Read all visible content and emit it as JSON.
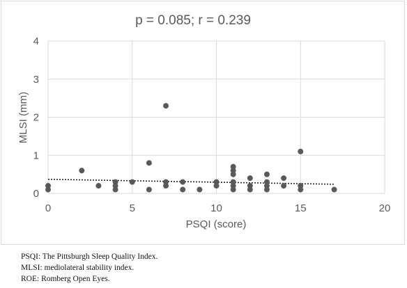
{
  "chart_data": {
    "type": "scatter",
    "title": "p = 0.085; r = 0.239",
    "xlabel": "PSQI (score)",
    "ylabel": "MLSI (mm)",
    "xlim": [
      0,
      20
    ],
    "ylim": [
      0,
      4
    ],
    "xticks": [
      "0",
      "5",
      "10",
      "15",
      "20"
    ],
    "yticks": [
      "0",
      "1",
      "2",
      "3",
      "4"
    ],
    "grid": true,
    "point_color": "#595959",
    "trendline": {
      "style": "dotted",
      "color": "#222222",
      "x": [
        0,
        17
      ],
      "y": [
        0.37,
        0.24
      ]
    },
    "points": [
      {
        "x": 0,
        "y": 0.2
      },
      {
        "x": 0,
        "y": 0.1
      },
      {
        "x": 2,
        "y": 0.6
      },
      {
        "x": 3,
        "y": 0.2
      },
      {
        "x": 4,
        "y": 0.3
      },
      {
        "x": 4,
        "y": 0.2
      },
      {
        "x": 4,
        "y": 0.1
      },
      {
        "x": 5,
        "y": 0.3
      },
      {
        "x": 6,
        "y": 0.8
      },
      {
        "x": 6,
        "y": 0.1
      },
      {
        "x": 7,
        "y": 2.3
      },
      {
        "x": 7,
        "y": 0.3
      },
      {
        "x": 7,
        "y": 0.2
      },
      {
        "x": 8,
        "y": 0.3
      },
      {
        "x": 8,
        "y": 0.1
      },
      {
        "x": 9,
        "y": 0.1
      },
      {
        "x": 10,
        "y": 0.3
      },
      {
        "x": 10,
        "y": 0.2
      },
      {
        "x": 11,
        "y": 0.7
      },
      {
        "x": 11,
        "y": 0.6
      },
      {
        "x": 11,
        "y": 0.5
      },
      {
        "x": 11,
        "y": 0.3
      },
      {
        "x": 11,
        "y": 0.2
      },
      {
        "x": 11,
        "y": 0.1
      },
      {
        "x": 12,
        "y": 0.4
      },
      {
        "x": 12,
        "y": 0.2
      },
      {
        "x": 12,
        "y": 0.1
      },
      {
        "x": 13,
        "y": 0.5
      },
      {
        "x": 13,
        "y": 0.3
      },
      {
        "x": 13,
        "y": 0.2
      },
      {
        "x": 13,
        "y": 0.1
      },
      {
        "x": 14,
        "y": 0.4
      },
      {
        "x": 14,
        "y": 0.2
      },
      {
        "x": 15,
        "y": 1.1
      },
      {
        "x": 15,
        "y": 0.2
      },
      {
        "x": 15,
        "y": 0.1
      },
      {
        "x": 17,
        "y": 0.1
      }
    ]
  },
  "footnotes": {
    "psqi": "PSQI: The Pittsburgh Sleep Quality Index.",
    "mlsi": "MLSI: mediolateral stability index.",
    "roe": "ROE: Romberg Open Eyes."
  }
}
